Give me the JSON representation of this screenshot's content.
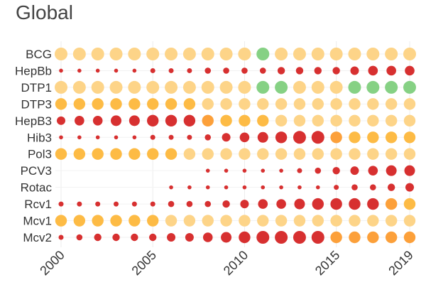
{
  "chart_data": {
    "type": "scatter",
    "title": "Global",
    "xlabel": "",
    "ylabel": "",
    "x": [
      2000,
      2001,
      2002,
      2003,
      2004,
      2005,
      2006,
      2007,
      2008,
      2009,
      2010,
      2011,
      2012,
      2013,
      2014,
      2015,
      2016,
      2017,
      2018,
      2019
    ],
    "xticks": [
      "2000",
      "2005",
      "2010",
      "2015",
      "2019"
    ],
    "xlim": [
      2000,
      2019
    ],
    "grid": true,
    "legend": "none",
    "colors": {
      "L": "#fdd488",
      "O": "#fdbb45",
      "D": "#fca03a",
      "R": "#d73030",
      "G": "#86d184"
    },
    "series": [
      {
        "name": "BCG",
        "colors": "LLLLLLLLLLLGLLLLLLLL",
        "sizes": "99999999999999999999"
      },
      {
        "name": "HepBb",
        "colors": "RRRRRRRRRRRRRRRRRRRR",
        "sizes": "11111222333344445666"
      },
      {
        "name": "DTP1",
        "colors": "LLLLLLLLLLLGGLLLGGGG",
        "sizes": "99999999999999999999"
      },
      {
        "name": "DTP3",
        "colors": "OOOOOOOOLLLLLLLLLLLL",
        "sizes": "88888888888888888888"
      },
      {
        "name": "HepB3",
        "colors": "RRRRRRRRDOOOLLLLLLLL",
        "sizes": "56677888888888888888"
      },
      {
        "name": "Hib3",
        "colors": "RRRRRRRRRRRRRRRDOOOO",
        "sizes": "11111222356789988888"
      },
      {
        "name": "Pol3",
        "colors": "OOOOOOOLLLLLLLLLLLLL",
        "sizes": "88888888888888888888"
      },
      {
        "name": "PCV3",
        "colors": "--------RRRRRRRRRRRR",
        "sizes": "00000000111112345677"
      },
      {
        "name": "Rotac",
        "colors": "------RRRRRRRRRRRRRR",
        "sizes": "00000011111111123345"
      },
      {
        "name": "Rcv1",
        "colors": "RRRRRRRRRRRRRRRRRRDO",
        "sizes": "22222233345667888888"
      },
      {
        "name": "Mcv1",
        "colors": "OOOOOOLLLLLLLLLLLLLL",
        "sizes": "88888888888888888888"
      },
      {
        "name": "Mcv2",
        "colors": "RRRRRRRRRRRRRRRDDDDD",
        "sizes": "23444455678999988888"
      }
    ]
  }
}
